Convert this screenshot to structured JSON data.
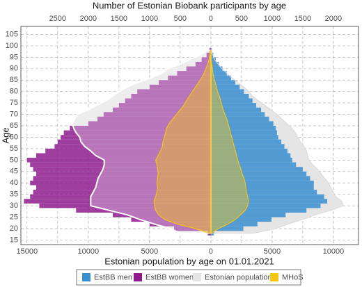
{
  "chart_data": {
    "type": "pyramid",
    "title": "Number of Estonian Biobank participants by age",
    "x_label": "Estonian population by age on 01.01.2021",
    "y_label": "Age",
    "y": [
      18,
      20,
      22,
      24,
      26,
      28,
      30,
      32,
      34,
      36,
      38,
      40,
      42,
      44,
      46,
      48,
      50,
      52,
      54,
      56,
      58,
      60,
      62,
      64,
      66,
      68,
      70,
      72,
      74,
      76,
      78,
      80,
      82,
      84,
      86,
      88,
      90,
      92,
      94,
      96,
      98
    ],
    "ylim": [
      13,
      108.5
    ],
    "yticks": [
      15,
      20,
      25,
      30,
      35,
      40,
      45,
      50,
      55,
      60,
      65,
      70,
      75,
      80,
      85,
      90,
      95,
      100,
      105
    ],
    "xlim": [
      -15500,
      12050
    ],
    "xticks": [
      {
        "value": -15000,
        "label": "15000"
      },
      {
        "value": -10000,
        "label": "10000"
      },
      {
        "value": -5000,
        "label": "5000"
      },
      0,
      5000,
      10000
    ],
    "x2lim": [
      -3100,
      2410
    ],
    "x2ticks": [
      {
        "value": -2500,
        "label": "2500"
      },
      {
        "value": -2000,
        "label": "2000"
      },
      {
        "value": -1500,
        "label": "1500"
      },
      {
        "value": -1000,
        "label": "1000"
      },
      {
        "value": -500,
        "label": "500"
      },
      0,
      500,
      1000,
      1500,
      2000
    ],
    "grid": true,
    "legend": "bottom",
    "series": [
      {
        "name": "EstBB men",
        "color": "#3a8fd0",
        "axis": "x2",
        "style": "bars",
        "men": [
          50,
          530,
          760,
          990,
          1220,
          1560,
          1790,
          1900,
          1850,
          1730,
          1680,
          1680,
          1620,
          1560,
          1500,
          1390,
          1330,
          1300,
          1250,
          1200,
          1150,
          1100,
          1080,
          1060,
          1020,
          950,
          880,
          820,
          740,
          680,
          620,
          540,
          470,
          400,
          330,
          260,
          190,
          130,
          80,
          40,
          15
        ]
      },
      {
        "name": "EstBB women",
        "color": "#8e1c8e",
        "axis": "x2",
        "style": "bars",
        "women": [
          50,
          600,
          1000,
          1300,
          1600,
          2200,
          2800,
          3050,
          2950,
          2900,
          2850,
          2950,
          2900,
          2850,
          2900,
          2950,
          3000,
          2850,
          2700,
          2550,
          2500,
          2450,
          2400,
          2300,
          2000,
          1850,
          1750,
          1600,
          1500,
          1400,
          1300,
          1200,
          1000,
          850,
          700,
          550,
          400,
          250,
          150,
          70,
          25
        ]
      },
      {
        "name": "Estonian population",
        "color": "#e5e5e5",
        "axis": "x",
        "style": "area",
        "women": [
          2500,
          3300,
          4600,
          5800,
          6800,
          8300,
          9800,
          9800,
          9800,
          9600,
          9400,
          9300,
          9200,
          9000,
          8800,
          8700,
          8700,
          9400,
          9800,
          10300,
          10600,
          10700,
          11000,
          11200,
          11300,
          11100,
          10900,
          10000,
          9300,
          8600,
          8000,
          7500,
          6800,
          5900,
          4900,
          4000,
          3500,
          2500,
          1700,
          900,
          300
        ],
        "men": [
          3500,
          5300,
          6300,
          7500,
          8500,
          9800,
          10800,
          10700,
          10200,
          10000,
          9800,
          9600,
          9300,
          9000,
          8700,
          8300,
          8000,
          7900,
          7800,
          7600,
          7300,
          7100,
          6900,
          6600,
          6200,
          5800,
          5400,
          4900,
          4400,
          3900,
          3400,
          3100,
          2700,
          2200,
          1700,
          1300,
          900,
          600,
          300,
          150,
          50
        ]
      },
      {
        "name": "MHoS",
        "color": "#f5c518",
        "axis": "x2",
        "style": "area",
        "women": [
          20,
          250,
          550,
          750,
          850,
          900,
          920,
          930,
          900,
          880,
          870,
          880,
          870,
          860,
          870,
          880,
          900,
          860,
          820,
          790,
          780,
          760,
          740,
          720,
          680,
          620,
          560,
          500,
          440,
          400,
          350,
          300,
          250,
          200,
          150,
          110,
          80,
          50,
          30,
          15,
          5
        ],
        "men": [
          10,
          120,
          280,
          400,
          480,
          560,
          600,
          610,
          600,
          580,
          570,
          560,
          540,
          510,
          490,
          460,
          440,
          420,
          400,
          380,
          360,
          340,
          320,
          300,
          280,
          260,
          230,
          200,
          180,
          160,
          140,
          110,
          90,
          70,
          50,
          35,
          25,
          15,
          8,
          4,
          2
        ]
      }
    ]
  }
}
